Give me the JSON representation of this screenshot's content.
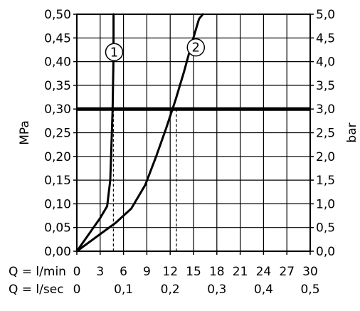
{
  "chart_data": {
    "type": "line",
    "x_axes": [
      {
        "label": "Q = l/min",
        "range": [
          0,
          30
        ],
        "ticks": [
          0,
          3,
          6,
          9,
          12,
          15,
          18,
          21,
          24,
          27,
          30
        ],
        "tick_labels": [
          "0",
          "3",
          "6",
          "9",
          "12",
          "15",
          "18",
          "21",
          "24",
          "27",
          "30"
        ]
      },
      {
        "label": "Q = l/sec",
        "range": [
          0,
          0.5
        ],
        "ticks": [
          0,
          0.1,
          0.2,
          0.3,
          0.4,
          0.5
        ],
        "tick_labels": [
          "0",
          "0,1",
          "0,2",
          "0,3",
          "0,4",
          "0,5"
        ]
      }
    ],
    "y_axes": [
      {
        "label": "MPa",
        "side": "left",
        "range": [
          0,
          0.5
        ],
        "ticks": [
          0,
          0.05,
          0.1,
          0.15,
          0.2,
          0.25,
          0.3,
          0.35,
          0.4,
          0.45,
          0.5
        ],
        "tick_labels": [
          "0,00",
          "0,05",
          "0,10",
          "0,15",
          "0,20",
          "0,25",
          "0,30",
          "0,35",
          "0,40",
          "0,45",
          "0,50"
        ]
      },
      {
        "label": "bar",
        "side": "right",
        "range": [
          0,
          5
        ],
        "ticks": [
          0,
          0.5,
          1,
          1.5,
          2,
          2.5,
          3,
          3.5,
          4,
          4.5,
          5
        ],
        "tick_labels": [
          "0,0",
          "0,5",
          "1,0",
          "1,5",
          "2,0",
          "2,5",
          "3,0",
          "3,5",
          "4,0",
          "4,5",
          "5,0"
        ]
      }
    ],
    "grid": true,
    "grid_x": [
      3,
      6,
      9,
      12,
      15,
      18,
      21,
      24,
      27
    ],
    "grid_y": [
      0.05,
      0.1,
      0.15,
      0.2,
      0.25,
      0.3,
      0.35,
      0.4,
      0.45
    ],
    "series": [
      {
        "name": "1",
        "label_at": [
          4.8,
          0.42
        ],
        "x": [
          0,
          1.5,
          3.0,
          3.9,
          4.3,
          4.5,
          4.6,
          4.7,
          4.72,
          4.72
        ],
        "y": [
          0,
          0.035,
          0.07,
          0.095,
          0.15,
          0.25,
          0.3,
          0.4,
          0.46,
          0.5
        ]
      },
      {
        "name": "2",
        "label_at": [
          15.3,
          0.43
        ],
        "x": [
          0,
          2.5,
          5.0,
          7.0,
          8.8,
          10.2,
          11.5,
          12.7,
          13.8,
          14.8,
          15.7,
          16.2
        ],
        "y": [
          0,
          0.03,
          0.06,
          0.09,
          0.14,
          0.2,
          0.26,
          0.32,
          0.38,
          0.44,
          0.49,
          0.5
        ]
      }
    ],
    "reference_line": {
      "y": 0.3
    },
    "markers": [
      {
        "series": "1",
        "x": 4.7,
        "y": 0.3
      },
      {
        "series": "2",
        "x": 12.8,
        "y": 0.3
      }
    ]
  }
}
